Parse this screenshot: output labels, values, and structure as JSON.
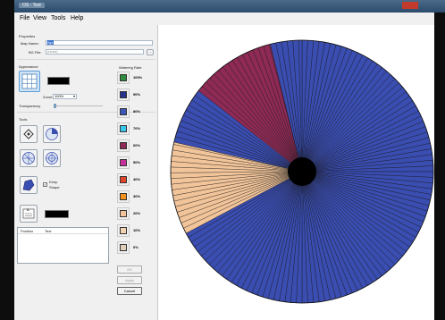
{
  "window": {
    "title": "OS - Test"
  },
  "menu": [
    "File",
    "View",
    "Tools",
    "Help"
  ],
  "properties": {
    "header": "Properties",
    "map_name_label": "Map Name:",
    "map_name_value": "fgz",
    "bg_file_label": "BG File:",
    "bg_file_value": "(none)",
    "browse_label": "..."
  },
  "appearance": {
    "header": "Appearance",
    "zoom_label": "Zoom:",
    "zoom_value": "100%",
    "transparency_label": "Transparency"
  },
  "tools": {
    "header": "Tools",
    "keep_shape_label_1": "Keep",
    "keep_shape_label_2": "Shape",
    "text_tool_label": "A"
  },
  "table": {
    "columns": [
      "Position",
      "Text"
    ]
  },
  "legend": {
    "header": "Watering Rate",
    "items": [
      {
        "label": "100%",
        "color": "#2f8a3e"
      },
      {
        "label": "90%",
        "color": "#27328c"
      },
      {
        "label": "80%",
        "color": "#3b58b8"
      },
      {
        "label": "70%",
        "color": "#38c6ea"
      },
      {
        "label": "60%",
        "color": "#8e2a55"
      },
      {
        "label": "50%",
        "color": "#c42f9a"
      },
      {
        "label": "40%",
        "color": "#e0452b"
      },
      {
        "label": "30%",
        "color": "#f2911e"
      },
      {
        "label": "20%",
        "color": "#f3c39a"
      },
      {
        "label": "10%",
        "color": "#f2d3b2"
      },
      {
        "label": "0%",
        "color": "#ddd0b6"
      }
    ]
  },
  "buttons": {
    "ok": "OK",
    "apply": "Apply",
    "cancel": "Cancel"
  },
  "colors": {
    "primary_color": "#000000",
    "text_color": "#000000",
    "sector_blue": "#3a4db0",
    "sector_magenta": "#8e2a55",
    "sector_peach": "#f1c49a",
    "hub": "#000000"
  },
  "map_sectors": [
    {
      "rate": "90%",
      "start_deg": 0,
      "end_deg": 242
    },
    {
      "rate": "20%",
      "start_deg": 242,
      "end_deg": 283
    },
    {
      "rate": "90%",
      "start_deg": 283,
      "end_deg": 308
    },
    {
      "rate": "60%",
      "start_deg": 308,
      "end_deg": 346
    },
    {
      "rate": "90%",
      "start_deg": 346,
      "end_deg": 360
    }
  ]
}
